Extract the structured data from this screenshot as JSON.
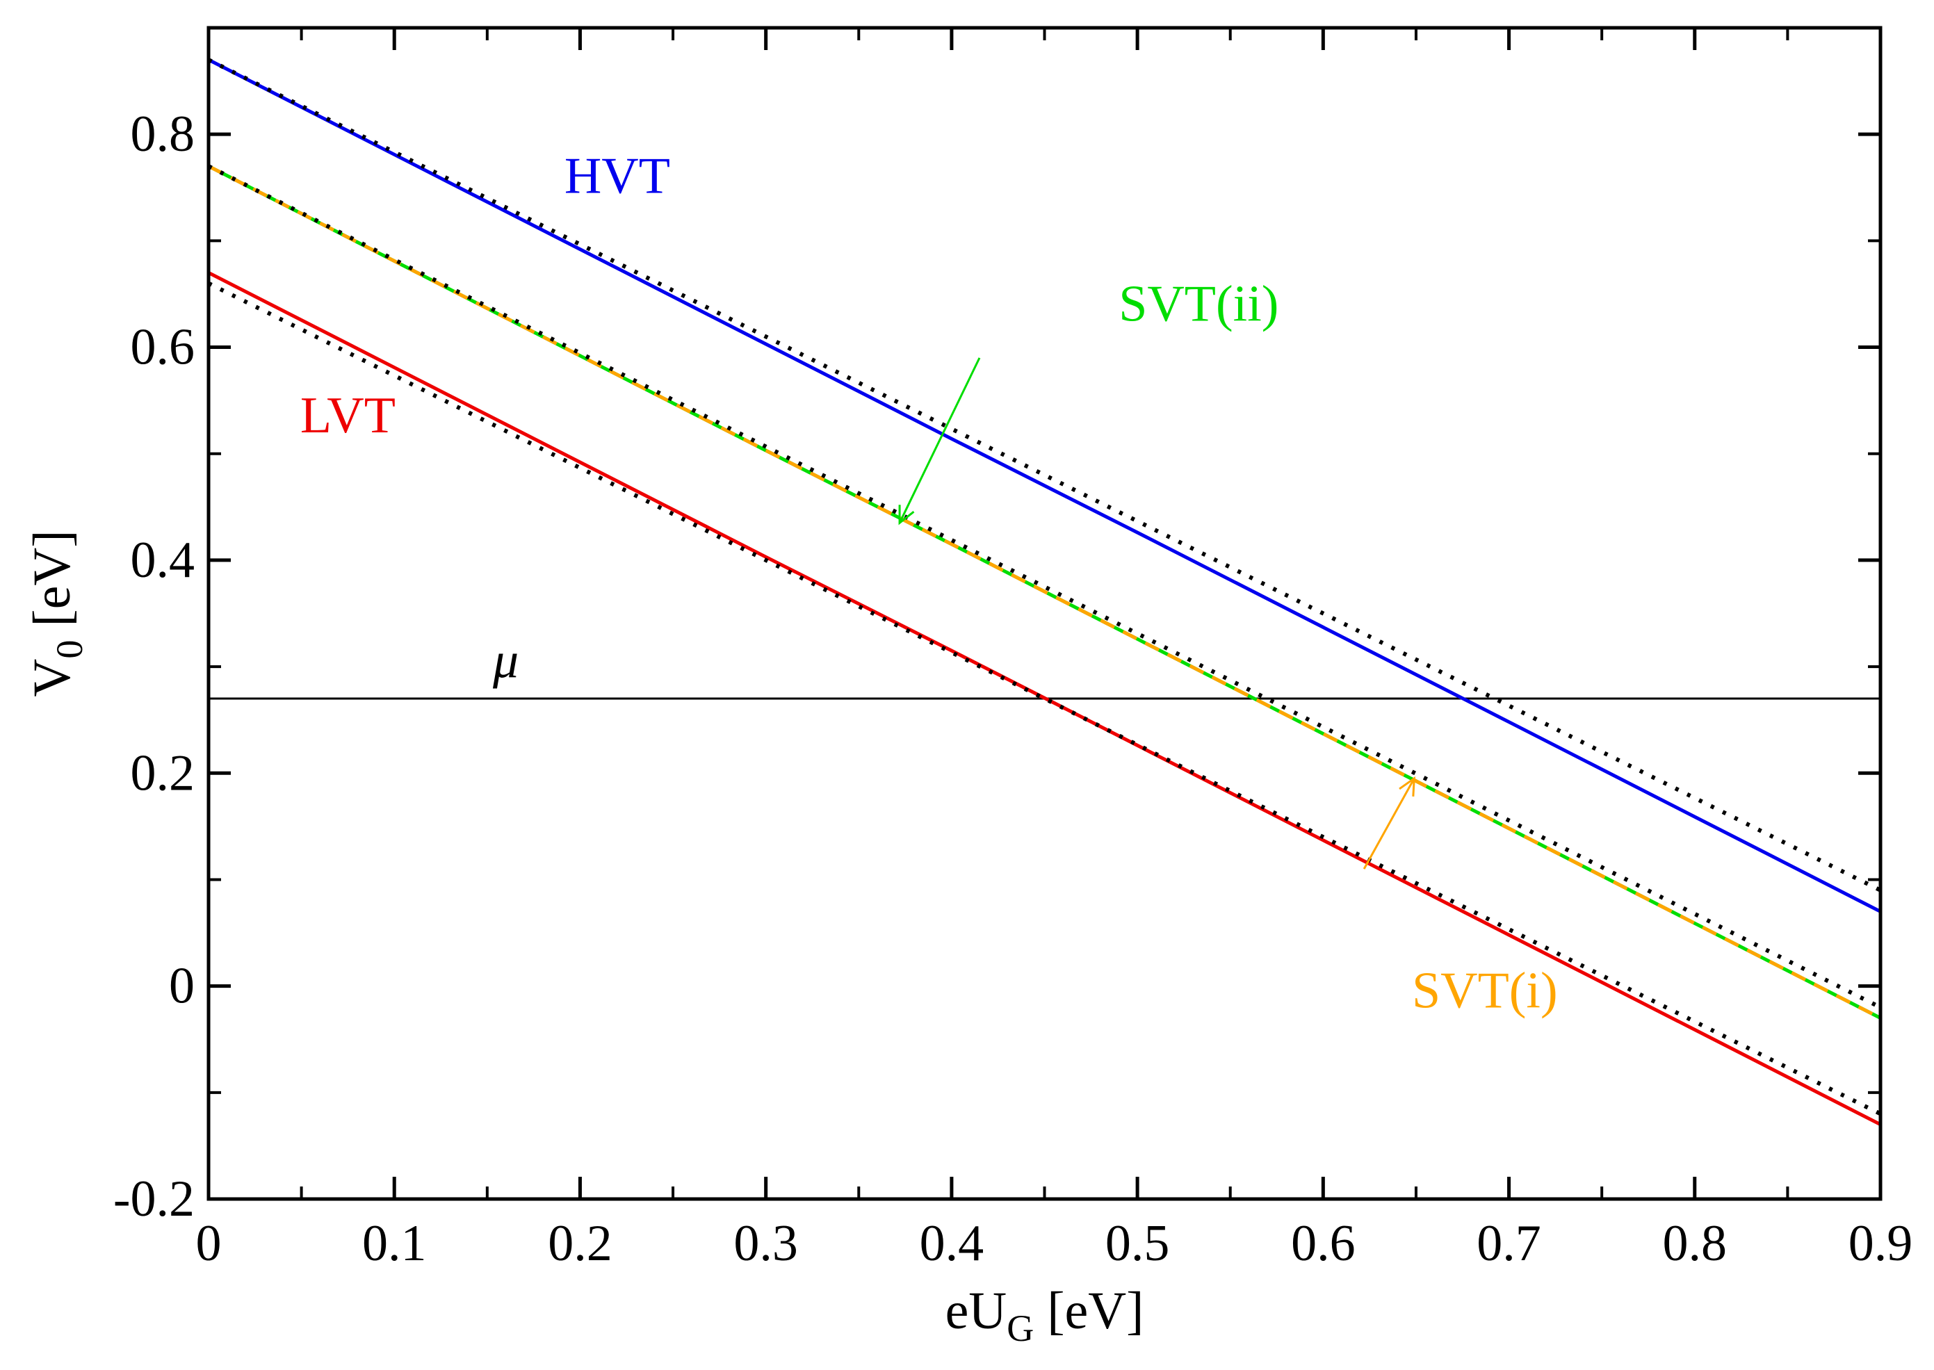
{
  "chart_data": {
    "type": "line",
    "title": "",
    "xlabel": {
      "main": "eU",
      "sub": "G",
      "unit": "[eV]"
    },
    "ylabel": {
      "main": "V",
      "sub": "0",
      "unit": "[eV]"
    },
    "xlim": [
      0,
      0.9
    ],
    "ylim": [
      -0.2,
      0.9
    ],
    "x_ticks": [
      {
        "value": 0,
        "label": "0"
      },
      {
        "value": 0.1,
        "label": "0.1"
      },
      {
        "value": 0.2,
        "label": "0.2"
      },
      {
        "value": 0.3,
        "label": "0.3"
      },
      {
        "value": 0.4,
        "label": "0.4"
      },
      {
        "value": 0.5,
        "label": "0.5"
      },
      {
        "value": 0.6,
        "label": "0.6"
      },
      {
        "value": 0.7,
        "label": "0.7"
      },
      {
        "value": 0.8,
        "label": "0.8"
      },
      {
        "value": 0.9,
        "label": "0.9"
      }
    ],
    "x_minor_ticks": [
      0.05,
      0.15,
      0.25,
      0.35,
      0.45,
      0.55,
      0.65,
      0.75,
      0.85
    ],
    "y_ticks": [
      {
        "value": -0.2,
        "label": "-0.2"
      },
      {
        "value": 0,
        "label": "0"
      },
      {
        "value": 0.2,
        "label": "0.2"
      },
      {
        "value": 0.4,
        "label": "0.4"
      },
      {
        "value": 0.6,
        "label": "0.6"
      },
      {
        "value": 0.8,
        "label": "0.8"
      }
    ],
    "y_minor_ticks": [
      -0.1,
      0.1,
      0.3,
      0.5,
      0.7
    ],
    "grid": false,
    "reference_line": {
      "name": "mu",
      "label": "μ",
      "y": 0.27,
      "label_x": 0.16,
      "label_y": 0.29,
      "color": "#000000"
    },
    "series": [
      {
        "name": "HVT",
        "label": "HVT",
        "color": "#0000ee",
        "style": "solid",
        "x": [
          0,
          0.1,
          0.2,
          0.3,
          0.4,
          0.5,
          0.6,
          0.7,
          0.8,
          0.9
        ],
        "y": [
          0.87,
          0.781,
          0.692,
          0.603,
          0.514,
          0.426,
          0.337,
          0.248,
          0.159,
          0.07
        ],
        "label_x": 0.22,
        "label_y": 0.745
      },
      {
        "name": "HVT-reference",
        "label": "",
        "color": "#000000",
        "style": "dotted",
        "x": [
          0,
          0.9
        ],
        "y": [
          0.87,
          0.09
        ]
      },
      {
        "name": "SVT(ii)",
        "label": "SVT(ii)",
        "color": "#00dd00",
        "style": "solid",
        "x": [
          0,
          0.1,
          0.2,
          0.3,
          0.4,
          0.5,
          0.6,
          0.7,
          0.8,
          0.9
        ],
        "y": [
          0.77,
          0.681,
          0.592,
          0.503,
          0.415,
          0.326,
          0.237,
          0.148,
          0.059,
          -0.03
        ],
        "label_x": 0.533,
        "label_y": 0.625
      },
      {
        "name": "SVT(i)",
        "label": "SVT(i)",
        "color": "#ffa500",
        "style": "dashed",
        "x": [
          0,
          0.1,
          0.2,
          0.3,
          0.4,
          0.5,
          0.6,
          0.7,
          0.8,
          0.9
        ],
        "y": [
          0.77,
          0.681,
          0.592,
          0.503,
          0.415,
          0.326,
          0.237,
          0.148,
          0.059,
          -0.03
        ],
        "label_x": 0.687,
        "label_y": -0.02
      },
      {
        "name": "SVT-reference",
        "label": "",
        "color": "#000000",
        "style": "dotted",
        "x": [
          0,
          0.9
        ],
        "y": [
          0.77,
          -0.02
        ]
      },
      {
        "name": "LVT",
        "label": "LVT",
        "color": "#ee0000",
        "style": "solid",
        "x": [
          0,
          0.1,
          0.2,
          0.3,
          0.4,
          0.5,
          0.6,
          0.7,
          0.8,
          0.9
        ],
        "y": [
          0.67,
          0.581,
          0.492,
          0.403,
          0.315,
          0.226,
          0.137,
          0.048,
          -0.041,
          -0.13
        ],
        "label_x": 0.075,
        "label_y": 0.52
      },
      {
        "name": "LVT-reference",
        "label": "",
        "color": "#000000",
        "style": "dotted",
        "x": [
          0,
          0.9
        ],
        "y": [
          0.66,
          -0.12
        ]
      }
    ],
    "annotations": [
      {
        "name": "svt-ii-arrow",
        "color": "#00dd00",
        "from": [
          0.415,
          0.59
        ],
        "to": [
          0.372,
          0.435
        ]
      },
      {
        "name": "svt-i-arrow",
        "color": "#ffa500",
        "from": [
          0.622,
          0.11
        ],
        "to": [
          0.649,
          0.195
        ]
      }
    ]
  }
}
